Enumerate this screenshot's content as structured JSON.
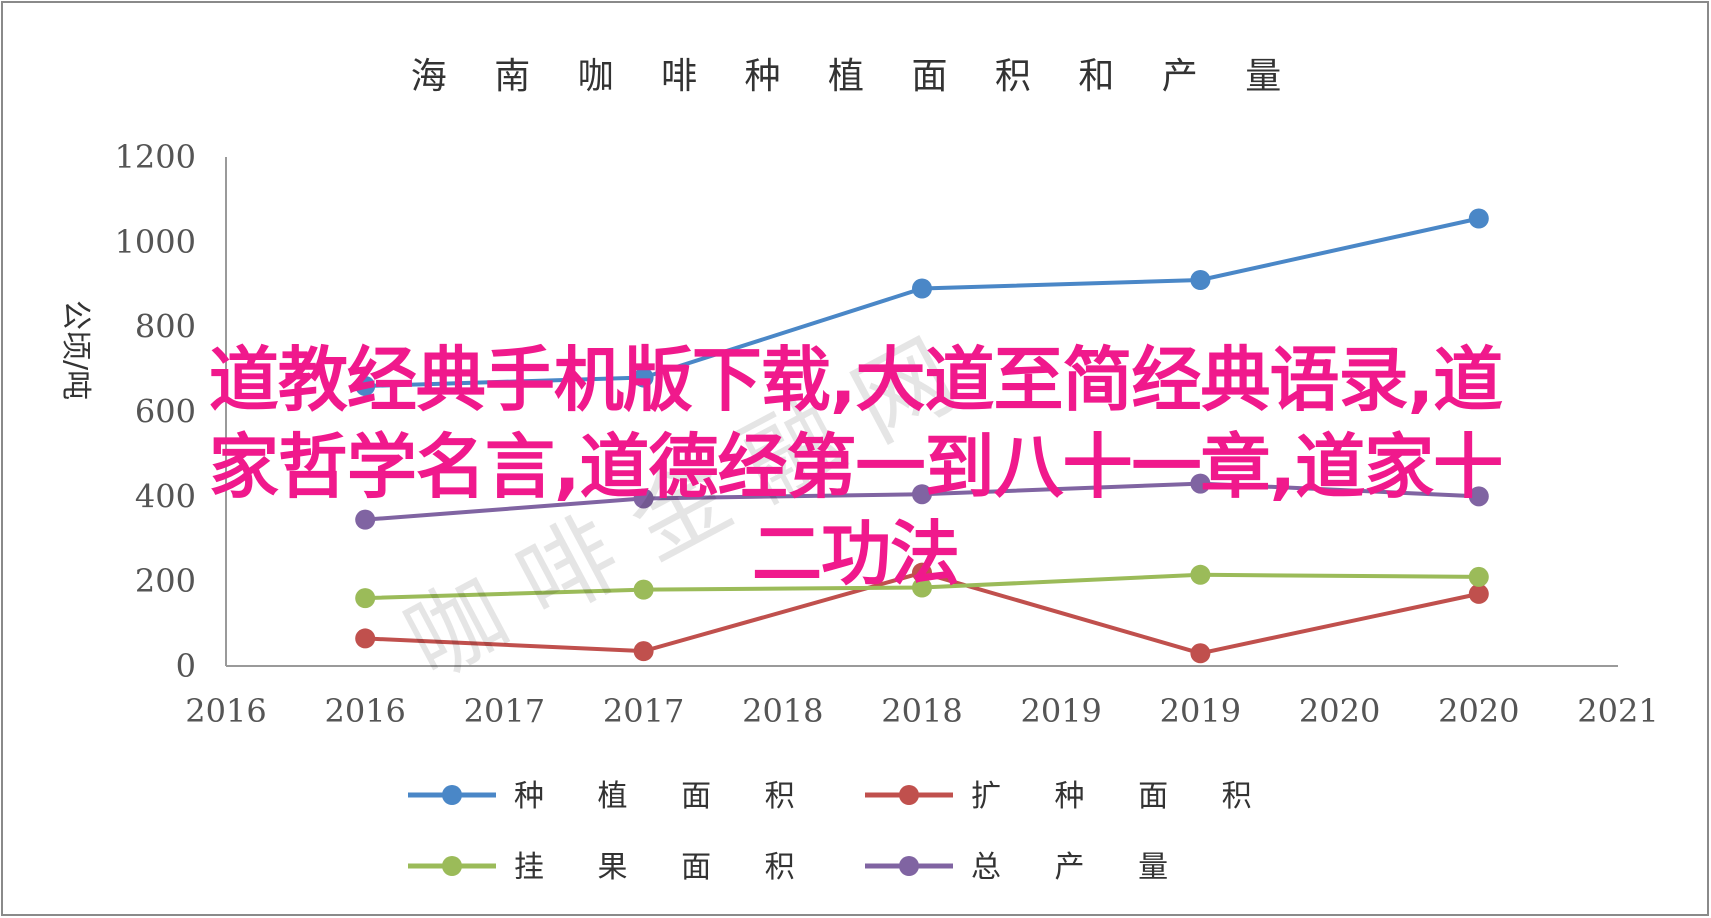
{
  "chart_data": {
    "type": "line",
    "title": "海 南 咖 啡 种 植 面 积 和 产 量",
    "ylabel": "公顷/吨",
    "ylim": [
      0,
      1200
    ],
    "yticks": [
      0,
      200,
      400,
      600,
      800,
      1000,
      1200
    ],
    "xlim": [
      2016,
      2021
    ],
    "x_tick_labels": [
      "2016",
      "2016",
      "2017",
      "2017",
      "2018",
      "2018",
      "2019",
      "2019",
      "2020",
      "2020",
      "2021"
    ],
    "x": [
      2016.5,
      2017.5,
      2018.5,
      2019.5,
      2020.5
    ],
    "series": [
      {
        "name": "种 植 面 积",
        "color": "#4a87c7",
        "values": [
          660,
          680,
          890,
          910,
          1055
        ]
      },
      {
        "name": "扩 种 面 积",
        "color": "#c0504d",
        "values": [
          65,
          35,
          220,
          30,
          170
        ]
      },
      {
        "name": "挂 果 面 积",
        "color": "#9bbb59",
        "values": [
          160,
          180,
          185,
          215,
          210
        ]
      },
      {
        "name": "总 产 量",
        "color": "#8064a2",
        "values": [
          345,
          395,
          405,
          430,
          400
        ]
      }
    ],
    "grid": false,
    "legend_position": "bottom"
  },
  "overlay": {
    "headline_line1": "道教经典手机版下载,大道至简经典语录,道",
    "headline_line2": "家哲学名言,道德经第一到八十一章,道家十",
    "headline_line3": "二功法",
    "watermark": "咖 啡 金 融 网"
  }
}
